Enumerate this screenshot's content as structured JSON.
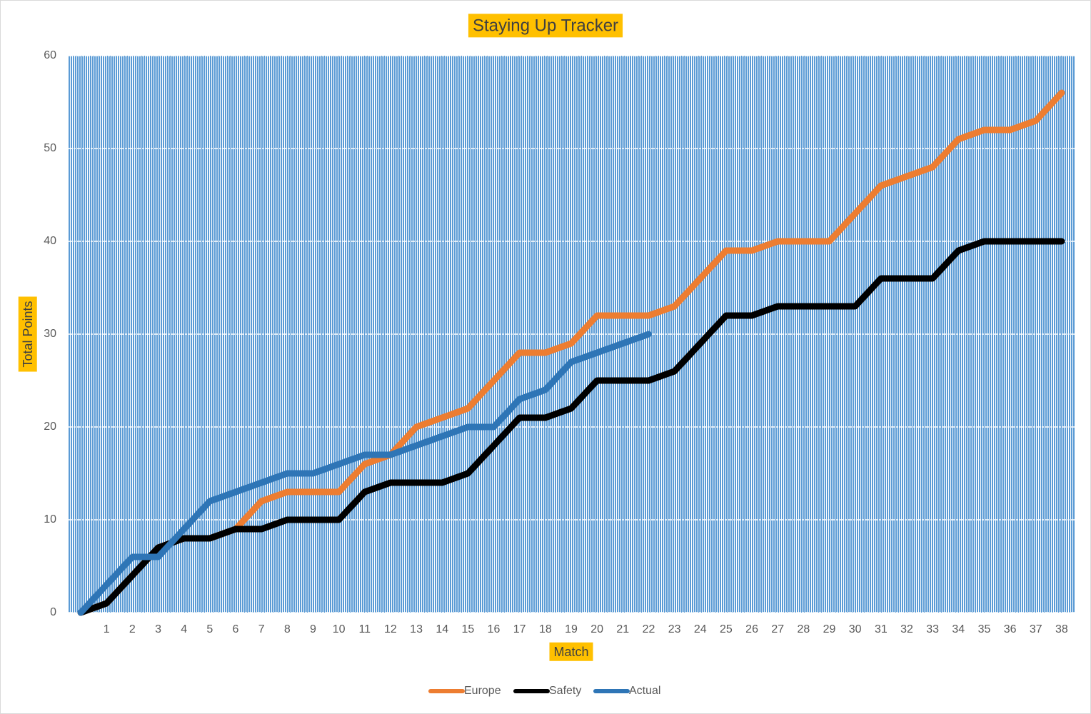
{
  "chart_data": {
    "type": "line",
    "title": "Staying Up Tracker",
    "xlabel": "Match",
    "ylabel": "Total Points",
    "categories": [
      null,
      "1",
      "2",
      "3",
      "4",
      "5",
      "6",
      "7",
      "8",
      "9",
      "10",
      "11",
      "12",
      "13",
      "14",
      "15",
      "16",
      "17",
      "18",
      "19",
      "20",
      "21",
      "22",
      "23",
      "24",
      "25",
      "26",
      "27",
      "28",
      "29",
      "30",
      "31",
      "32",
      "33",
      "34",
      "35",
      "36",
      "37",
      "38"
    ],
    "series": [
      {
        "name": "Europe",
        "color": "#ed7d31",
        "values": [
          0,
          1,
          4,
          7,
          8,
          8,
          9,
          12,
          13,
          13,
          13,
          16,
          17,
          20,
          21,
          22,
          25,
          28,
          28,
          29,
          32,
          32,
          32,
          33,
          36,
          39,
          39,
          40,
          40,
          40,
          43,
          46,
          47,
          48,
          51,
          52,
          52,
          53,
          56
        ]
      },
      {
        "name": "Safety",
        "color": "#000000",
        "values": [
          0,
          1,
          4,
          7,
          8,
          8,
          9,
          9,
          10,
          10,
          10,
          13,
          14,
          14,
          14,
          15,
          18,
          21,
          21,
          22,
          25,
          25,
          25,
          26,
          29,
          32,
          32,
          33,
          33,
          33,
          33,
          36,
          36,
          36,
          39,
          40,
          40,
          40,
          40
        ]
      },
      {
        "name": "Actual",
        "color": "#2e75b6",
        "values": [
          0,
          3,
          6,
          6,
          9,
          12,
          13,
          14,
          15,
          15,
          16,
          17,
          17,
          18,
          19,
          20,
          20,
          23,
          24,
          27,
          28,
          29,
          30,
          null,
          null,
          null,
          null,
          null,
          null,
          null,
          null,
          null,
          null,
          null,
          null,
          null,
          null,
          null,
          null
        ]
      }
    ],
    "ylim": [
      0,
      60
    ],
    "yticks": [
      0,
      10,
      20,
      30,
      40,
      50,
      60
    ],
    "grid": true,
    "legend": "bottom"
  }
}
